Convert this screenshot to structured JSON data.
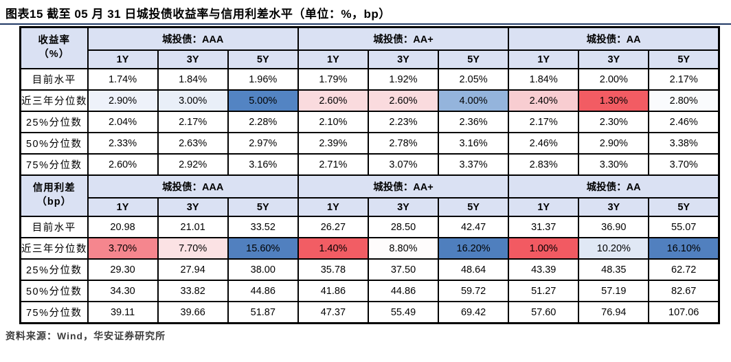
{
  "page": {
    "title": "图表15 截至 05 月 31 日城投债收益率与信用利差水平（单位：%，bp）",
    "source": "资料来源：Wind，华安证券研究所"
  },
  "colors": {
    "header_bg": "#DAE1F3",
    "title_rule": "#1F3864",
    "border": "#000000",
    "heat_red_max": "#F25A62",
    "heat_blue_max": "#4F7FBE"
  },
  "chart_data": {
    "type": "table",
    "title": "图表15 截至 05 月 31 日城投债收益率与信用利差水平（单位：%，bp）",
    "tenors": [
      "1Y",
      "3Y",
      "5Y"
    ],
    "sections": [
      {
        "corner_line1": "收益率",
        "corner_line2": "（%）",
        "groups": [
          "城投债：AAA",
          "城投债：AA+",
          "城投债：AA"
        ],
        "rows": [
          {
            "label": "目前水平",
            "values": [
              "1.74%",
              "1.84%",
              "1.96%",
              "1.79%",
              "1.92%",
              "2.05%",
              "1.84%",
              "2.00%",
              "2.17%"
            ],
            "fills": null
          },
          {
            "label": "近三年分位数",
            "values": [
              "2.90%",
              "3.00%",
              "5.00%",
              "2.60%",
              "2.60%",
              "4.00%",
              "2.40%",
              "1.30%",
              "2.80%"
            ],
            "fills": [
              "#EEF2FA",
              "#E9EFF8",
              "#5384C3",
              "#FADBDE",
              "#FADBDE",
              "#94B4DC",
              "#F8CDD1",
              "#F25C63",
              "#FAFBFD"
            ]
          },
          {
            "label": "25%分位数",
            "values": [
              "2.04%",
              "2.17%",
              "2.28%",
              "2.10%",
              "2.23%",
              "2.36%",
              "2.17%",
              "2.30%",
              "2.46%"
            ],
            "fills": null
          },
          {
            "label": "50%分位数",
            "values": [
              "2.33%",
              "2.63%",
              "2.97%",
              "2.39%",
              "2.78%",
              "3.16%",
              "2.46%",
              "2.90%",
              "3.38%"
            ],
            "fills": null
          },
          {
            "label": "75%分位数",
            "values": [
              "2.60%",
              "2.92%",
              "3.16%",
              "2.71%",
              "3.07%",
              "3.37%",
              "2.83%",
              "3.30%",
              "3.70%"
            ],
            "fills": null
          }
        ]
      },
      {
        "corner_line1": "信用利差",
        "corner_line2": "（bp）",
        "groups": [
          "城投债：AAA",
          "城投债：AA+",
          "城投债：AA"
        ],
        "rows": [
          {
            "label": "目前水平",
            "values": [
              "20.98",
              "21.01",
              "33.52",
              "26.27",
              "28.50",
              "42.47",
              "31.37",
              "36.90",
              "55.07"
            ],
            "fills": null
          },
          {
            "label": "近三年分位数",
            "values": [
              "3.70%",
              "7.70%",
              "15.60%",
              "1.40%",
              "8.80%",
              "16.20%",
              "1.00%",
              "10.20%",
              "16.10%"
            ],
            "fills": [
              "#F5868E",
              "#FBE2E4",
              "#5180BF",
              "#F25D64",
              "#FEFCFC",
              "#4F7FBE",
              "#F25A62",
              "#E0E8F5",
              "#5180BF"
            ]
          },
          {
            "label": "25%分位数",
            "values": [
              "29.30",
              "27.94",
              "38.00",
              "35.78",
              "37.50",
              "48.64",
              "43.39",
              "48.35",
              "62.72"
            ],
            "fills": null
          },
          {
            "label": "50%分位数",
            "values": [
              "34.30",
              "33.82",
              "44.86",
              "41.86",
              "44.86",
              "59.72",
              "51.27",
              "57.19",
              "82.67"
            ],
            "fills": null
          },
          {
            "label": "75%分位数",
            "values": [
              "39.11",
              "39.66",
              "51.87",
              "47.37",
              "55.49",
              "69.42",
              "57.60",
              "76.94",
              "107.06"
            ],
            "fills": null
          }
        ]
      }
    ]
  }
}
